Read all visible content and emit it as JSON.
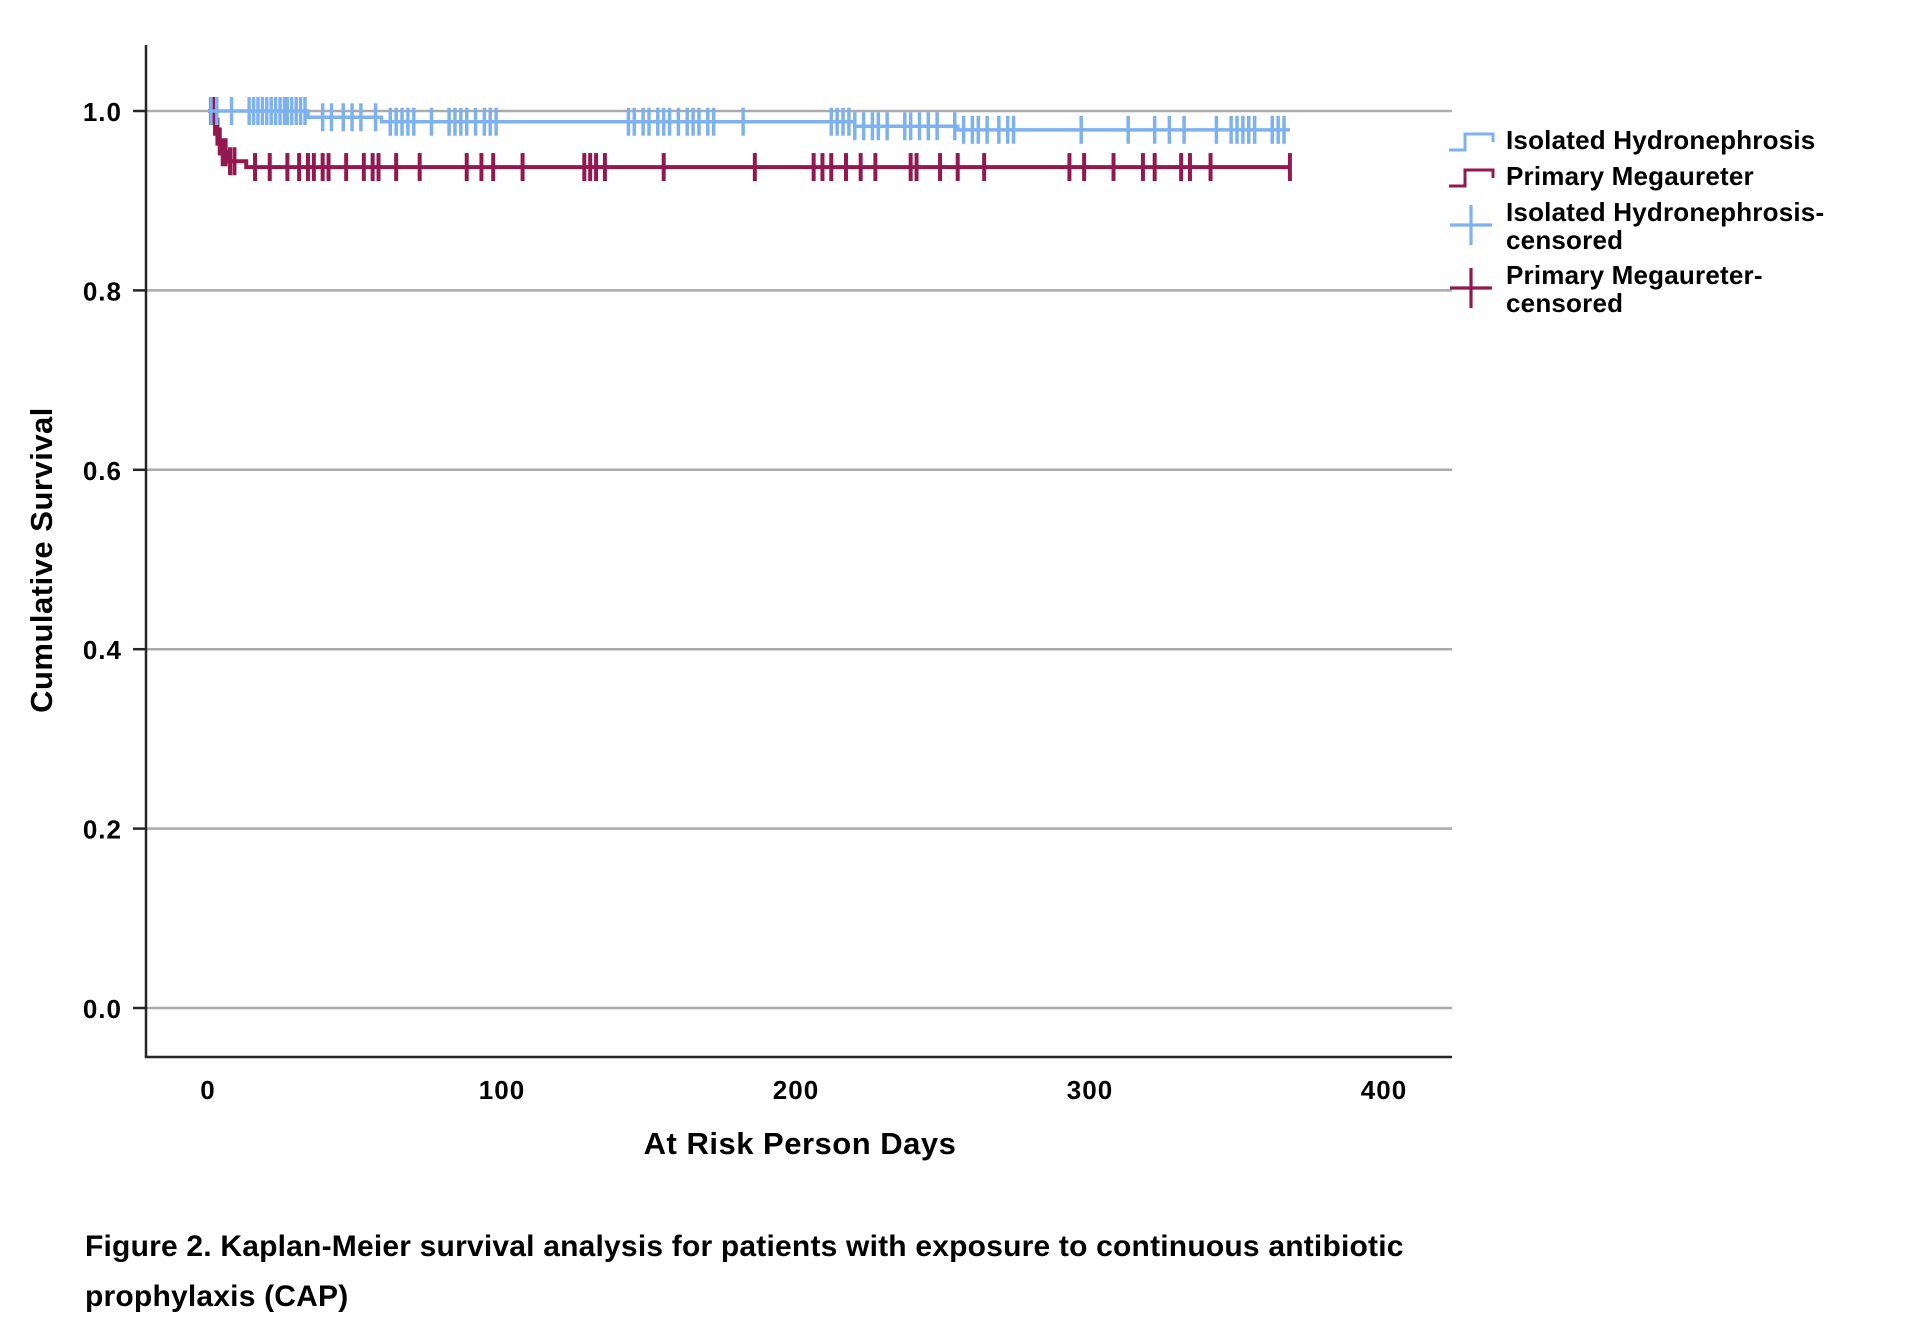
{
  "figure": {
    "caption": "Figure 2. Kaplan-Meier survival analysis for patients with exposure to continuous antibiotic prophylaxis (CAP)"
  },
  "chart_data": {
    "type": "line",
    "subtype": "kaplan-meier-step",
    "title": "",
    "xlabel": "At Risk Person Days",
    "ylabel": "Cumulative Survival",
    "xlim": [
      -21,
      423
    ],
    "ylim": [
      -0.055,
      1.075
    ],
    "x_ticks": [
      0,
      100,
      200,
      300,
      400
    ],
    "y_ticks": [
      0.0,
      0.2,
      0.4,
      0.6,
      0.8,
      1.0
    ],
    "grid": "horizontal",
    "legend_position": "right",
    "colors": {
      "grid": "#ABABAB",
      "axis": "#262626",
      "text": "#000000",
      "background": "#FFFFFF"
    },
    "series": [
      {
        "name": "Isolated Hydronephrosis",
        "color": "#7EB2EF",
        "end_day": 368,
        "steps": [
          [
            0,
            1.0
          ],
          [
            34,
            0.993
          ],
          [
            59,
            0.988
          ],
          [
            220,
            0.983
          ],
          [
            255,
            0.979
          ]
        ],
        "censored_days": [
          1,
          3,
          8,
          14,
          15.5,
          17,
          18.5,
          20,
          21.5,
          23,
          24.5,
          26,
          27,
          28.5,
          30,
          31.5,
          33,
          39,
          42,
          46,
          49,
          52,
          57,
          62,
          64,
          66,
          68,
          70,
          76,
          82,
          84,
          86,
          88,
          91,
          94,
          96,
          98,
          143,
          145,
          148,
          150,
          153,
          155,
          157,
          160,
          163,
          165,
          167,
          170,
          172,
          182,
          212,
          214,
          216,
          218,
          220,
          223,
          226,
          228,
          231,
          237,
          239,
          242,
          245,
          248,
          254,
          257,
          260,
          262,
          265,
          269,
          272,
          274,
          297,
          313,
          322,
          327,
          332,
          343,
          348,
          350,
          352,
          354,
          356,
          362,
          364,
          366
        ]
      },
      {
        "name": "Primary Megaureter",
        "color": "#93184F",
        "end_day": 368,
        "steps": [
          [
            0,
            1.0
          ],
          [
            2,
            0.988
          ],
          [
            2.8,
            0.977
          ],
          [
            3.6,
            0.966
          ],
          [
            4.6,
            0.954
          ],
          [
            6.3,
            0.944
          ],
          [
            13,
            0.9375
          ]
        ],
        "censored_days": [
          1,
          1.7,
          2.4,
          3.2,
          4,
          5,
          6,
          7.5,
          9,
          16,
          21,
          27,
          31,
          34,
          36,
          39,
          41,
          47,
          53,
          56,
          58,
          64,
          72,
          88,
          93,
          97,
          107,
          128,
          130,
          132,
          135,
          155,
          186,
          206,
          209,
          212,
          217,
          222,
          227,
          239,
          241,
          249,
          255,
          264,
          293,
          298,
          308,
          318,
          322,
          331,
          334,
          341,
          368
        ]
      }
    ],
    "legend": {
      "entries": [
        {
          "label": "Isolated Hydronephrosis",
          "type": "step-line",
          "series": 0
        },
        {
          "label": "Primary Megaureter",
          "type": "step-line",
          "series": 1
        },
        {
          "label": "Isolated Hydronephrosis-censored",
          "type": "plus",
          "series": 0
        },
        {
          "label": "Primary Megaureter-censored",
          "type": "plus",
          "series": 1
        }
      ]
    }
  }
}
